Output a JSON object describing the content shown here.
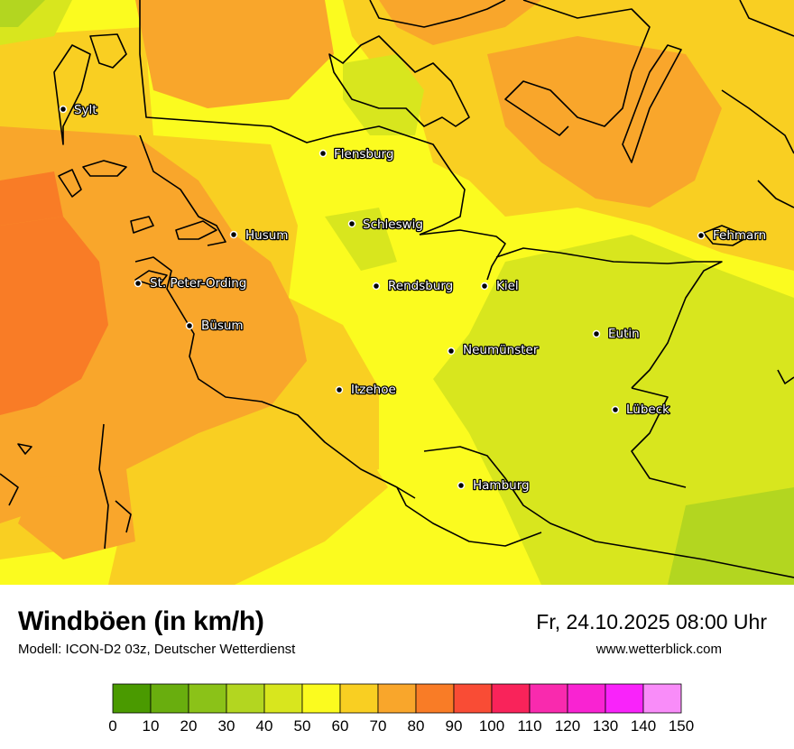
{
  "map": {
    "legend_colors": [
      "#4a9a00",
      "#69ae0e",
      "#8bc218",
      "#b3d620",
      "#d8e61e",
      "#fbfb1f",
      "#f9cf22",
      "#f9a62b",
      "#f97c26",
      "#f94c35",
      "#f9235a",
      "#f92aae",
      "#f923d2",
      "#f923fa",
      "#f98cf9"
    ],
    "cities": [
      {
        "name": "Sylt"
      },
      {
        "name": "Flensburg"
      },
      {
        "name": "Schleswig"
      },
      {
        "name": "Husum"
      },
      {
        "name": "Fehmarn"
      },
      {
        "name": "St. Peter-Ording"
      },
      {
        "name": "Rendsburg"
      },
      {
        "name": "Kiel"
      },
      {
        "name": "Büsum"
      },
      {
        "name": "Eutin"
      },
      {
        "name": "Neumünster"
      },
      {
        "name": "Itzehoe"
      },
      {
        "name": "Lübeck"
      },
      {
        "name": "Hamburg"
      }
    ]
  },
  "footer": {
    "title": "Windböen (in km/h)",
    "subtitle": "Modell: ICON-D2 03z, Deutscher Wetterdienst",
    "datetime": "Fr, 24.10.2025 08:00 Uhr",
    "website": "www.wetterblick.com"
  },
  "scale": {
    "ticks": [
      "0",
      "10",
      "20",
      "30",
      "40",
      "50",
      "60",
      "70",
      "80",
      "90",
      "100",
      "110",
      "120",
      "130",
      "140",
      "150"
    ]
  }
}
